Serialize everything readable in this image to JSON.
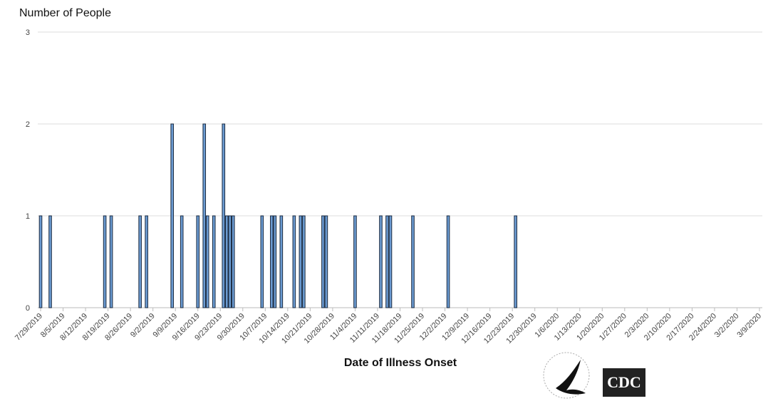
{
  "chart_data": {
    "type": "bar",
    "title": "Number of People",
    "x_label": "Date of Illness Onset",
    "logo_text": "CDC",
    "color": "#6b9bd2",
    "x": [
      "7/29/2019",
      "8/1/2019",
      "8/18/2019",
      "8/20/2019",
      "8/29/2019",
      "8/31/2019",
      "9/8/2019",
      "9/11/2019",
      "9/16/2019",
      "9/18/2019",
      "9/19/2019",
      "9/21/2019",
      "9/24/2019",
      "9/25/2019",
      "9/26/2019",
      "9/27/2019",
      "10/6/2019",
      "10/9/2019",
      "10/10/2019",
      "10/12/2019",
      "10/16/2019",
      "10/18/2019",
      "10/19/2019",
      "10/25/2019",
      "10/26/2019",
      "11/4/2019",
      "11/12/2019",
      "11/14/2019",
      "11/15/2019",
      "11/22/2019",
      "12/3/2019",
      "12/24/2019"
    ],
    "values": [
      1,
      1,
      1,
      1,
      1,
      1,
      2,
      1,
      1,
      2,
      1,
      1,
      2,
      1,
      1,
      1,
      1,
      1,
      1,
      1,
      1,
      1,
      1,
      1,
      1,
      1,
      1,
      1,
      1,
      1,
      1,
      1
    ],
    "xlim": [
      "7/29/2019",
      "3/9/2020"
    ],
    "xticks": [
      "7/29/2019",
      "8/5/2019",
      "8/12/2019",
      "8/19/2019",
      "8/26/2019",
      "9/2/2019",
      "9/9/2019",
      "9/16/2019",
      "9/23/2019",
      "9/30/2019",
      "10/7/2019",
      "10/14/2019",
      "10/21/2019",
      "10/28/2019",
      "11/4/2019",
      "11/11/2019",
      "11/18/2019",
      "11/25/2019",
      "12/2/2019",
      "12/9/2019",
      "12/16/2019",
      "12/23/2019",
      "12/30/2019",
      "1/6/2020",
      "1/13/2020",
      "1/20/2020",
      "1/27/2020",
      "2/3/2020",
      "2/10/2020",
      "2/17/2020",
      "2/24/2020",
      "3/2/2020",
      "3/9/2020"
    ],
    "ylim": [
      0,
      3
    ],
    "yticks": [
      0,
      1,
      2,
      3
    ],
    "grid": true
  }
}
